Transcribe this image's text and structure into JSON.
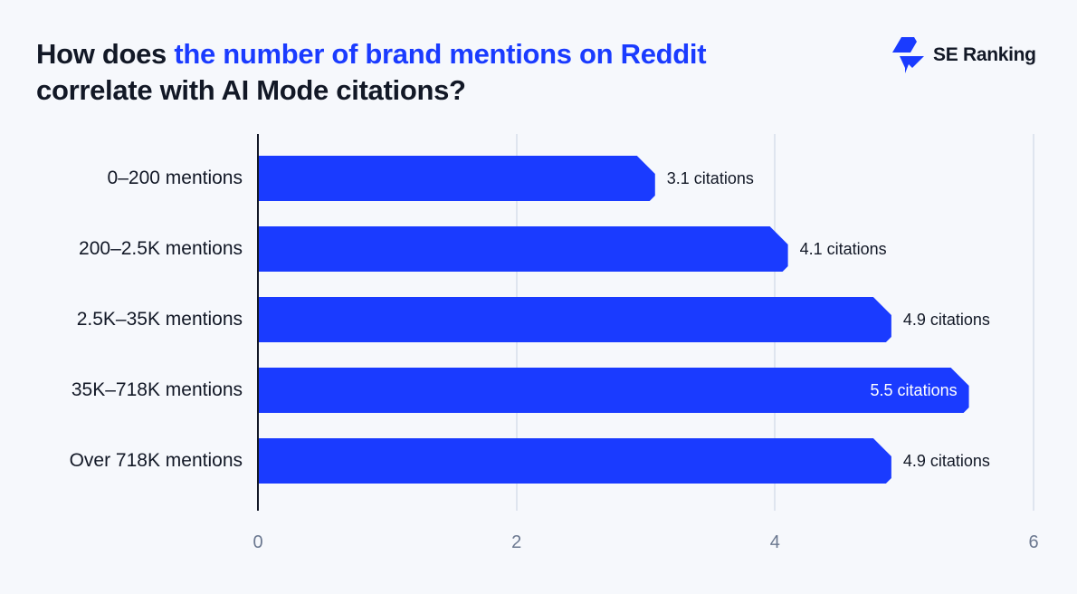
{
  "title": {
    "prefix": "How does ",
    "highlight": "the number of brand mentions on Reddit",
    "line2": "correlate with AI Mode citations?"
  },
  "brand": {
    "name": "SE Ranking",
    "icon": "se-ranking-logo-icon"
  },
  "colors": {
    "background": "#f6f8fc",
    "bar": "#1a3bff",
    "accent_text": "#1a3bff",
    "text": "#121826",
    "tick_text": "#6b7890",
    "gridline": "#dfe5ef"
  },
  "chart_data": {
    "type": "bar",
    "orientation": "horizontal",
    "title": "How does the number of brand mentions on Reddit correlate with AI Mode citations?",
    "categories": [
      "0–200 mentions",
      "200–2.5K mentions",
      "2.5K–35K mentions",
      "35K–718K mentions",
      "Over 718K mentions"
    ],
    "values": [
      3.1,
      4.1,
      4.9,
      5.5,
      4.9
    ],
    "value_labels": [
      "3.1 citations",
      "4.1 citations",
      "4.9 citations",
      "5.5 citations",
      "4.9 citations"
    ],
    "xlabel": "",
    "ylabel": "",
    "xlim": [
      0,
      6
    ],
    "xticks": [
      "0",
      "2",
      "4",
      "6"
    ],
    "grid": true,
    "legend": null
  }
}
